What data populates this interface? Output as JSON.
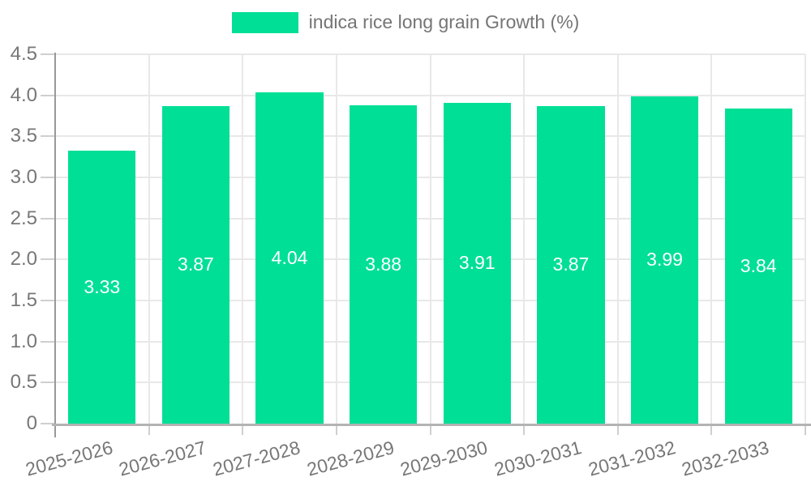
{
  "chart_data": {
    "type": "bar",
    "title": "",
    "xlabel": "",
    "ylabel": "",
    "categories": [
      "2025-2026",
      "2026-2027",
      "2027-2028",
      "2028-2029",
      "2029-2030",
      "2030-2031",
      "2031-2032",
      "2032-2033"
    ],
    "series": [
      {
        "name": "indica rice long grain Growth (%)",
        "values": [
          3.33,
          3.87,
          4.04,
          3.88,
          3.91,
          3.87,
          3.99,
          3.84
        ]
      }
    ],
    "value_labels": [
      "3.33",
      "3.87",
      "4.04",
      "3.88",
      "3.91",
      "3.87",
      "3.99",
      "3.84"
    ],
    "ylim": [
      0,
      4.5
    ],
    "ytick_step": 0.5,
    "ytick_labels": [
      "0",
      "0.5",
      "1.0",
      "1.5",
      "2.0",
      "2.5",
      "3.0",
      "3.5",
      "4.0",
      "4.5"
    ],
    "grid": true,
    "legend": {
      "position": "top-center",
      "label": "indica rice long grain Growth (%)"
    },
    "colors": {
      "bar": "#00DF96",
      "value_text": "#ffffff",
      "axis_text": "#777777",
      "grid_line": "#e8e8e8",
      "tick_mark": "#cfcfcf",
      "y_axis_line": "#999999",
      "x_axis_line": "#b3b3b3",
      "background": "#ffffff"
    }
  }
}
